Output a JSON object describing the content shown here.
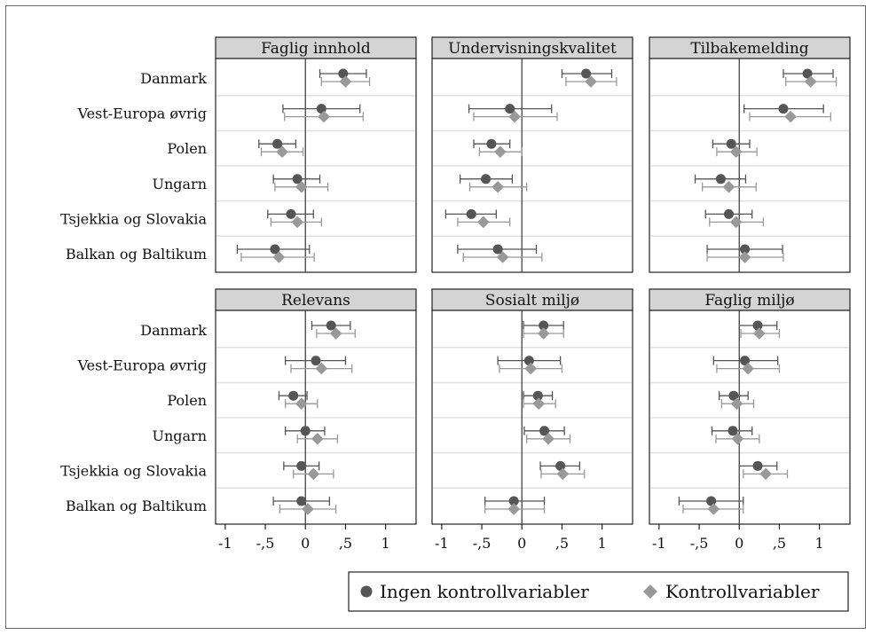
{
  "chart_data": {
    "type": "scatter",
    "subtype": "coefficient-plot-with-error-bars",
    "categories": [
      "Danmark",
      "Vest-Europa øvrig",
      "Polen",
      "Ungarn",
      "Tsjekkia og Slovakia",
      "Balkan og Baltikum"
    ],
    "x_ticks": [
      -1,
      -0.5,
      0,
      0.5,
      1
    ],
    "x_tick_labels": [
      "-1",
      "-,5",
      "0",
      ",5",
      "1"
    ],
    "xlim": [
      -1.12,
      1.38
    ],
    "reference_line": 0,
    "grid": "horizontal",
    "legend_position": "bottom-right",
    "colors": {
      "series_1": "#555555",
      "series_2": "#999999",
      "strip": "#d4d4d4",
      "grid": "#e2e2e2"
    },
    "series_meta": [
      {
        "name": "Ingen kontrollvariabler",
        "marker": "circle"
      },
      {
        "name": "Kontrollvariabler",
        "marker": "diamond"
      }
    ],
    "panels": [
      {
        "title": "Faglig innhold",
        "series": [
          {
            "name": "Ingen kontrollvariabler",
            "estimates": [
              0.47,
              0.2,
              -0.35,
              -0.1,
              -0.18,
              -0.38
            ],
            "ci_low": [
              0.18,
              -0.28,
              -0.58,
              -0.4,
              -0.47,
              -0.85
            ],
            "ci_high": [
              0.76,
              0.68,
              -0.12,
              0.18,
              0.1,
              0.05
            ]
          },
          {
            "name": "Kontrollvariabler",
            "estimates": [
              0.5,
              0.23,
              -0.29,
              -0.05,
              -0.1,
              -0.33
            ],
            "ci_low": [
              0.2,
              -0.26,
              -0.55,
              -0.38,
              -0.43,
              -0.8
            ],
            "ci_high": [
              0.8,
              0.72,
              -0.03,
              0.28,
              0.2,
              0.11
            ]
          }
        ]
      },
      {
        "title": "Undervisningskvalitet",
        "series": [
          {
            "name": "Ingen kontrollvariabler",
            "estimates": [
              0.8,
              -0.15,
              -0.38,
              -0.45,
              -0.63,
              -0.3
            ],
            "ci_low": [
              0.5,
              -0.66,
              -0.6,
              -0.77,
              -0.95,
              -0.8
            ],
            "ci_high": [
              1.12,
              0.37,
              -0.15,
              -0.12,
              -0.32,
              0.18
            ]
          },
          {
            "name": "Kontrollvariabler",
            "estimates": [
              0.86,
              -0.09,
              -0.27,
              -0.3,
              -0.48,
              -0.24
            ],
            "ci_low": [
              0.55,
              -0.6,
              -0.53,
              -0.65,
              -0.8,
              -0.73
            ],
            "ci_high": [
              1.18,
              0.44,
              0.0,
              0.06,
              -0.15,
              0.25
            ]
          }
        ]
      },
      {
        "title": "Tilbakemelding",
        "series": [
          {
            "name": "Ingen kontrollvariabler",
            "estimates": [
              0.85,
              0.55,
              -0.1,
              -0.23,
              -0.13,
              0.07
            ],
            "ci_low": [
              0.55,
              0.06,
              -0.33,
              -0.55,
              -0.42,
              -0.4
            ],
            "ci_high": [
              1.17,
              1.05,
              0.13,
              0.08,
              0.16,
              0.54
            ]
          },
          {
            "name": "Kontrollvariabler",
            "estimates": [
              0.89,
              0.64,
              -0.04,
              -0.13,
              -0.04,
              0.07
            ],
            "ci_low": [
              0.58,
              0.13,
              -0.28,
              -0.46,
              -0.37,
              -0.4
            ],
            "ci_high": [
              1.21,
              1.14,
              0.22,
              0.21,
              0.3,
              0.55
            ]
          }
        ]
      },
      {
        "title": "Relevans",
        "series": [
          {
            "name": "Ingen kontrollvariabler",
            "estimates": [
              0.32,
              0.13,
              -0.15,
              0.0,
              -0.05,
              -0.05
            ],
            "ci_low": [
              0.08,
              -0.25,
              -0.33,
              -0.25,
              -0.27,
              -0.4
            ],
            "ci_high": [
              0.56,
              0.5,
              0.02,
              0.24,
              0.17,
              0.3
            ]
          },
          {
            "name": "Kontrollvariabler",
            "estimates": [
              0.38,
              0.2,
              -0.05,
              0.15,
              0.1,
              0.03
            ],
            "ci_low": [
              0.14,
              -0.18,
              -0.25,
              -0.1,
              -0.15,
              -0.32
            ],
            "ci_high": [
              0.62,
              0.58,
              0.15,
              0.4,
              0.35,
              0.38
            ]
          }
        ]
      },
      {
        "title": "Sosialt miljø",
        "series": [
          {
            "name": "Ingen kontrollvariabler",
            "estimates": [
              0.27,
              0.09,
              0.2,
              0.28,
              0.48,
              -0.1
            ],
            "ci_low": [
              0.02,
              -0.3,
              0.02,
              0.03,
              0.23,
              -0.46
            ],
            "ci_high": [
              0.52,
              0.48,
              0.38,
              0.53,
              0.72,
              0.28
            ]
          },
          {
            "name": "Kontrollvariabler",
            "estimates": [
              0.27,
              0.11,
              0.21,
              0.33,
              0.51,
              -0.1
            ],
            "ci_low": [
              0.02,
              -0.28,
              0.02,
              0.06,
              0.24,
              -0.46
            ],
            "ci_high": [
              0.52,
              0.5,
              0.42,
              0.6,
              0.78,
              0.28
            ]
          }
        ]
      },
      {
        "title": "Faglig miljø",
        "series": [
          {
            "name": "Ingen kontrollvariabler",
            "estimates": [
              0.23,
              0.07,
              -0.07,
              -0.08,
              0.23,
              -0.35
            ],
            "ci_low": [
              0.0,
              -0.32,
              -0.25,
              -0.34,
              0.0,
              -0.75
            ],
            "ci_high": [
              0.47,
              0.48,
              0.11,
              0.16,
              0.47,
              0.05
            ]
          },
          {
            "name": "Kontrollvariabler",
            "estimates": [
              0.25,
              0.11,
              -0.03,
              -0.02,
              0.33,
              -0.32
            ],
            "ci_low": [
              0.02,
              -0.28,
              -0.22,
              -0.29,
              0.05,
              -0.7
            ],
            "ci_high": [
              0.5,
              0.5,
              0.18,
              0.25,
              0.6,
              0.05
            ]
          }
        ]
      }
    ]
  }
}
